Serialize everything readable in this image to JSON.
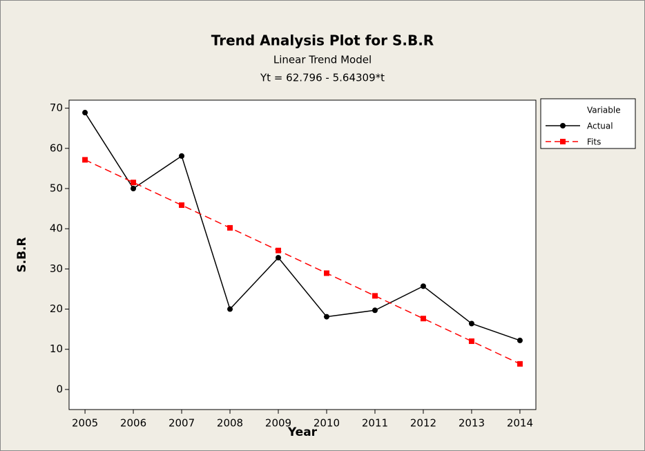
{
  "chart_data": {
    "type": "line",
    "title": "Trend Analysis Plot for S.B.R",
    "subtitle": "Linear Trend Model",
    "equation": "Yt = 62.796 - 5.64309*t",
    "x_label": "Year",
    "y_label": "S.B.R",
    "legend_title": "Variable",
    "x": [
      2005,
      2006,
      2007,
      2008,
      2009,
      2010,
      2011,
      2012,
      2013,
      2014
    ],
    "series": [
      {
        "name": "Actual",
        "color": "#000000",
        "marker": "circle",
        "dash": false,
        "values": [
          68.9,
          50.0,
          58.1,
          20.0,
          32.8,
          18.1,
          19.7,
          25.7,
          16.4,
          12.2
        ]
      },
      {
        "name": "Fits",
        "color": "#ff0000",
        "marker": "square",
        "dash": true,
        "values": [
          57.15,
          51.51,
          45.87,
          40.22,
          34.58,
          28.94,
          23.3,
          17.65,
          12.01,
          6.37
        ]
      }
    ],
    "xlim": [
      2004.67,
      2014.33
    ],
    "ylim": [
      -5,
      72
    ],
    "xticks": [
      2005,
      2006,
      2007,
      2008,
      2009,
      2010,
      2011,
      2012,
      2013,
      2014
    ],
    "yticks": [
      0,
      10,
      20,
      30,
      40,
      50,
      60,
      70
    ],
    "legend": "right"
  }
}
